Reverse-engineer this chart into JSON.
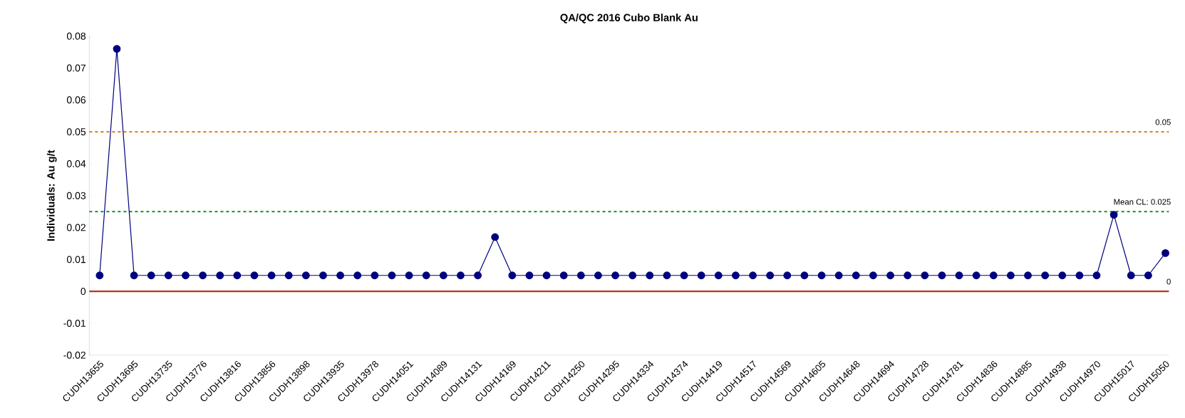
{
  "chart_data": {
    "type": "line",
    "title": "QA/QC 2016 Cubo Blank Au",
    "ylabel": "Individuals: Au g/t",
    "categories": [
      "CUDH13655",
      null,
      "CUDH13695",
      null,
      "CUDH13735",
      null,
      "CUDH13776",
      null,
      "CUDH13816",
      null,
      "CUDH13856",
      null,
      "CUDH13898",
      null,
      "CUDH13935",
      null,
      "CUDH13978",
      null,
      "CUDH14051",
      null,
      "CUDH14089",
      null,
      "CUDH14131",
      null,
      "CUDH14169",
      null,
      "CUDH14211",
      null,
      "CUDH14250",
      null,
      "CUDH14295",
      null,
      "CUDH14334",
      null,
      "CUDH14374",
      null,
      "CUDH14419",
      null,
      "CUDH14517",
      null,
      "CUDH14569",
      null,
      "CUDH14605",
      null,
      "CUDH14648",
      null,
      "CUDH14694",
      null,
      "CUDH14728",
      null,
      "CUDH14781",
      null,
      "CUDH14836",
      null,
      "CUDH14885",
      null,
      "CUDH14938",
      null,
      "CUDH14970",
      null,
      "CUDH15017",
      null,
      "CUDH15050"
    ],
    "series": [
      {
        "color": "#00007f",
        "values": [
          0.005,
          0.076,
          0.005,
          0.005,
          0.005,
          0.005,
          0.005,
          0.005,
          0.005,
          0.005,
          0.005,
          0.005,
          0.005,
          0.005,
          0.005,
          0.005,
          0.005,
          0.005,
          0.005,
          0.005,
          0.005,
          0.005,
          0.005,
          0.017,
          0.005,
          0.005,
          0.005,
          0.005,
          0.005,
          0.005,
          0.005,
          0.005,
          0.005,
          0.005,
          0.005,
          0.005,
          0.005,
          0.005,
          0.005,
          0.005,
          0.005,
          0.005,
          0.005,
          0.005,
          0.005,
          0.005,
          0.005,
          0.005,
          0.005,
          0.005,
          0.005,
          0.005,
          0.005,
          0.005,
          0.005,
          0.005,
          0.005,
          0.005,
          0.005,
          0.024,
          0.005,
          0.005,
          0.012
        ]
      }
    ],
    "ylim": [
      -0.02,
      0.08
    ],
    "yticks": [
      -0.02,
      -0.01,
      0,
      0.01,
      0.02,
      0.03,
      0.04,
      0.05,
      0.06,
      0.07,
      0.08
    ],
    "marker": "circle",
    "grid": false,
    "ref_lines": [
      {
        "axis": "y",
        "value": 0.05,
        "label": "0.05",
        "color": "#e0862a",
        "line_style": "dashed"
      },
      {
        "axis": "y",
        "value": 0.025,
        "label": "Mean CL: 0.025",
        "color": "#2e9a3e",
        "line_style": "dashed"
      },
      {
        "axis": "y",
        "value": 0,
        "label": "0",
        "color": "#b5361c",
        "line_style": "solid"
      }
    ]
  }
}
